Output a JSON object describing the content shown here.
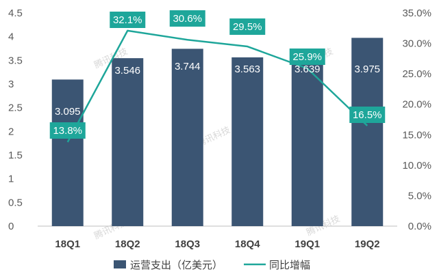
{
  "chart_data": {
    "type": "bar",
    "categories": [
      "18Q1",
      "18Q2",
      "18Q3",
      "18Q4",
      "19Q1",
      "19Q2"
    ],
    "series": [
      {
        "name": "运营支出（亿美元）",
        "type": "bar",
        "axis": "left",
        "values": [
          3.095,
          3.546,
          3.744,
          3.563,
          3.639,
          3.975
        ],
        "labels": [
          "3.095",
          "3.546",
          "3.744",
          "3.563",
          "3.639",
          "3.975"
        ],
        "color": "#3b5573"
      },
      {
        "name": "同比增幅",
        "type": "line",
        "axis": "right",
        "values": [
          13.8,
          32.1,
          30.6,
          29.5,
          25.9,
          16.5
        ],
        "labels": [
          "13.8%",
          "32.1%",
          "30.6%",
          "29.5%",
          "25.9%",
          "16.5%"
        ],
        "color": "#1ea69a"
      }
    ],
    "y_left": {
      "ylim": [
        0,
        4.5
      ],
      "ticks": [
        0,
        0.5,
        1,
        1.5,
        2,
        2.5,
        3,
        3.5,
        4,
        4.5
      ],
      "tick_labels": [
        "0",
        "0.5",
        "1",
        "1.5",
        "2",
        "2.5",
        "3",
        "3.5",
        "4",
        "4.5"
      ]
    },
    "y_right": {
      "ylim": [
        0,
        35
      ],
      "ticks": [
        0,
        5,
        10,
        15,
        20,
        25,
        30,
        35
      ],
      "tick_labels": [
        "0.0%",
        "5.0%",
        "10.0%",
        "15.0%",
        "20.0%",
        "25.0%",
        "30.0%",
        "35.0%"
      ]
    },
    "title": "",
    "xlabel": "",
    "ylabel": "",
    "grid": false,
    "legend": "bottom",
    "watermark": "腾讯科技"
  }
}
